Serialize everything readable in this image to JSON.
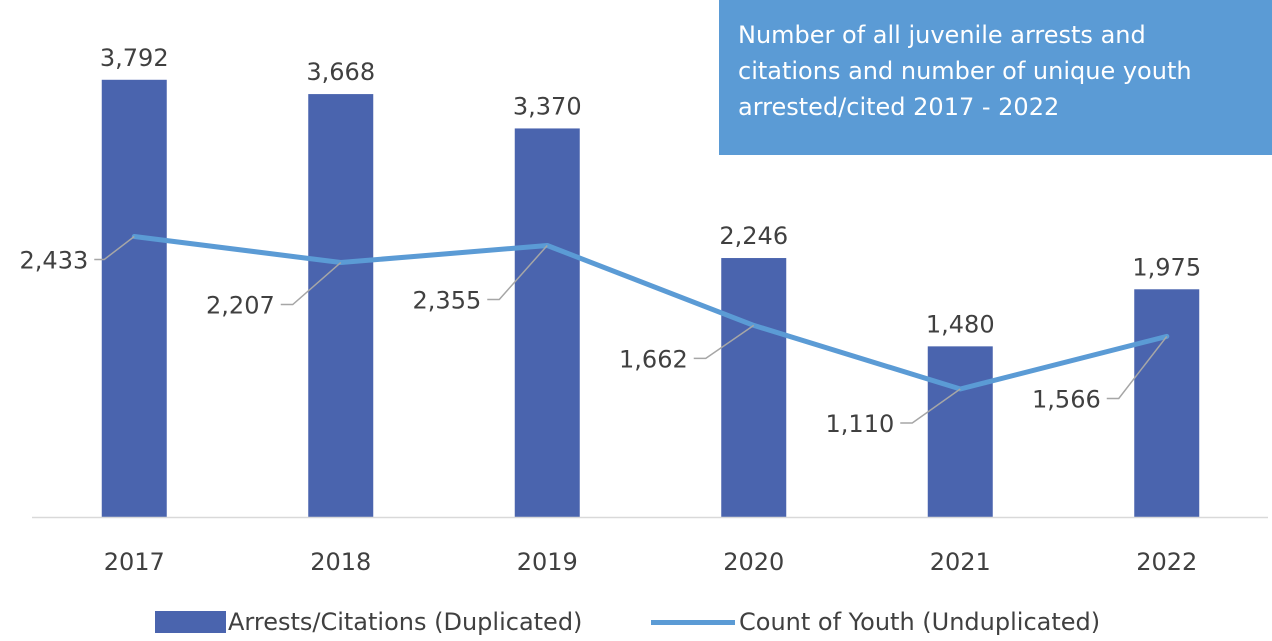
{
  "chart_data": {
    "type": "bar",
    "title": "Number of all juvenile arrests and citations and number of unique youth arrested/cited 2017 - 2022",
    "categories": [
      "2017",
      "2018",
      "2019",
      "2020",
      "2021",
      "2022"
    ],
    "series": [
      {
        "name": "Arrests/Citations (Duplicated)",
        "type": "bar",
        "values": [
          3792,
          3668,
          3370,
          2246,
          1480,
          1975
        ],
        "labels": [
          "3,792",
          "3,668",
          "3,370",
          "2,246",
          "1,480",
          "1,975"
        ],
        "color": "#4a64ae"
      },
      {
        "name": "Count of Youth (Unduplicated)",
        "type": "line",
        "values": [
          2433,
          2207,
          2355,
          1662,
          1110,
          1566
        ],
        "labels": [
          "2,433",
          "2,207",
          "2,355",
          "1,662",
          "1,110",
          "1,566"
        ],
        "color": "#5b9bd5"
      }
    ],
    "ylim": [
      0,
      4000
    ],
    "grid": false,
    "legend": "bottom",
    "title_box_color": "#5b9bd5"
  }
}
